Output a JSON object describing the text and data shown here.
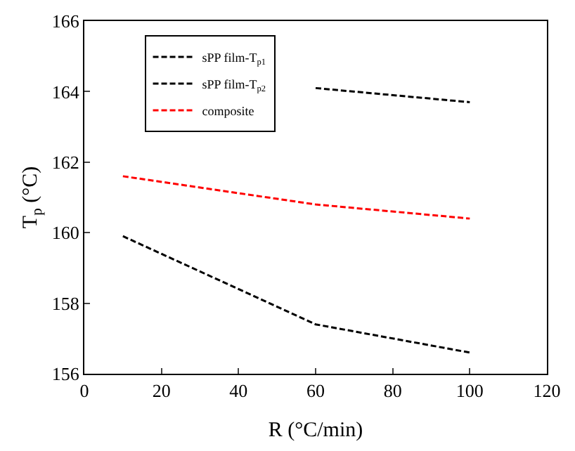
{
  "chart_data": {
    "type": "line",
    "xlabel": "R (°C/min)",
    "ylabel": "T$_{p}$ (°C)",
    "x": [
      10,
      60,
      100
    ],
    "series": [
      {
        "name": "sPP film-T$_{p1}$",
        "color": "#000000",
        "values": [
          null,
          164.1,
          163.7
        ]
      },
      {
        "name": "sPP film-T$_{p2}$",
        "color": "#000000",
        "values": [
          159.9,
          157.4,
          156.6
        ]
      },
      {
        "name": "composite",
        "color": "#ff0000",
        "values": [
          161.6,
          160.8,
          160.4
        ]
      }
    ],
    "xlim": [
      0,
      120
    ],
    "xticks": [
      0,
      20,
      40,
      60,
      80,
      100,
      120
    ],
    "ylim": [
      156,
      166
    ],
    "yticks": [
      156,
      158,
      160,
      162,
      164,
      166
    ],
    "legend": "top left",
    "marker": "none",
    "line_style": "dashed"
  }
}
